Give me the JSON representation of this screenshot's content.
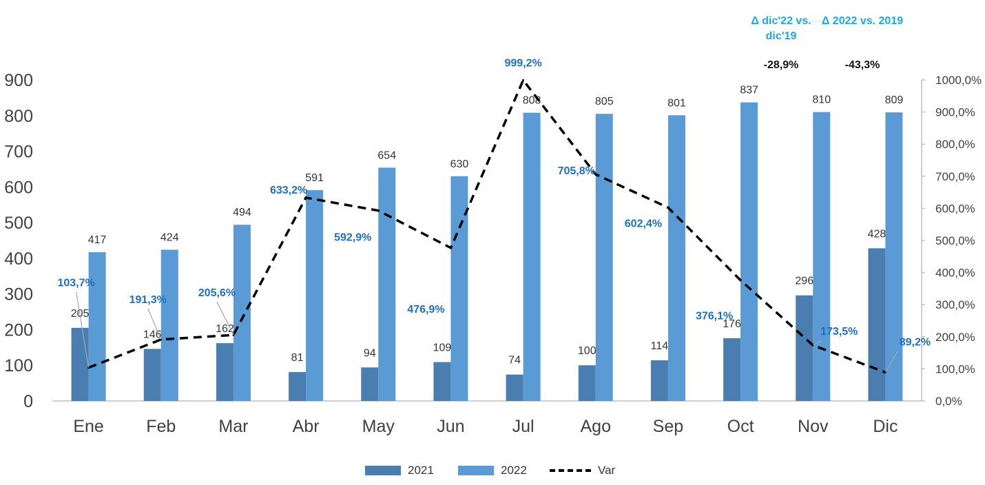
{
  "chart_data": {
    "type": "bar",
    "categories": [
      "Ene",
      "Feb",
      "Mar",
      "Abr",
      "May",
      "Jun",
      "Jul",
      "Ago",
      "Sep",
      "Oct",
      "Nov",
      "Dic"
    ],
    "series": [
      {
        "name": "2021",
        "type": "bar",
        "axis": "left",
        "color": "#4a7eb0",
        "values": [
          205,
          146,
          162,
          81,
          94,
          109,
          74,
          100,
          114,
          176,
          296,
          428
        ]
      },
      {
        "name": "2022",
        "type": "bar",
        "axis": "left",
        "color": "#5b9bd5",
        "values": [
          417,
          424,
          494,
          591,
          654,
          630,
          808,
          805,
          801,
          837,
          810,
          809
        ]
      },
      {
        "name": "Var",
        "type": "line",
        "axis": "right",
        "color": "#000000",
        "values": [
          103.7,
          191.3,
          205.6,
          633.2,
          592.9,
          476.9,
          999.2,
          705.8,
          602.4,
          376.1,
          173.5,
          89.2
        ],
        "labels": [
          "103,7%",
          "191,3%",
          "205,6%",
          "633,2%",
          "592,9%",
          "476,9%",
          "999,2%",
          "705,8%",
          "602,4%",
          "376,1%",
          "173,5%",
          "89,2%"
        ]
      }
    ],
    "ylim_left": [
      0,
      900
    ],
    "yticks_left": [
      "0",
      "100",
      "200",
      "300",
      "400",
      "500",
      "600",
      "700",
      "800",
      "900"
    ],
    "ylim_right": [
      0,
      1000
    ],
    "yticks_right": [
      "0,0%",
      "100,0%",
      "200,0%",
      "300,0%",
      "400,0%",
      "500,0%",
      "600,0%",
      "700,0%",
      "800,0%",
      "900,0%",
      "1000,0%"
    ],
    "grid": false,
    "legend_position": "bottom-center",
    "line_label_color": "#1f6fbf"
  },
  "annotations": [
    {
      "title": "Δ dic'22 vs. dic'19",
      "value": "-28,9%"
    },
    {
      "title": "Δ 2022 vs. 2019",
      "value": "-43,3%"
    }
  ],
  "legend": {
    "items": [
      "2021",
      "2022",
      "Var"
    ]
  }
}
